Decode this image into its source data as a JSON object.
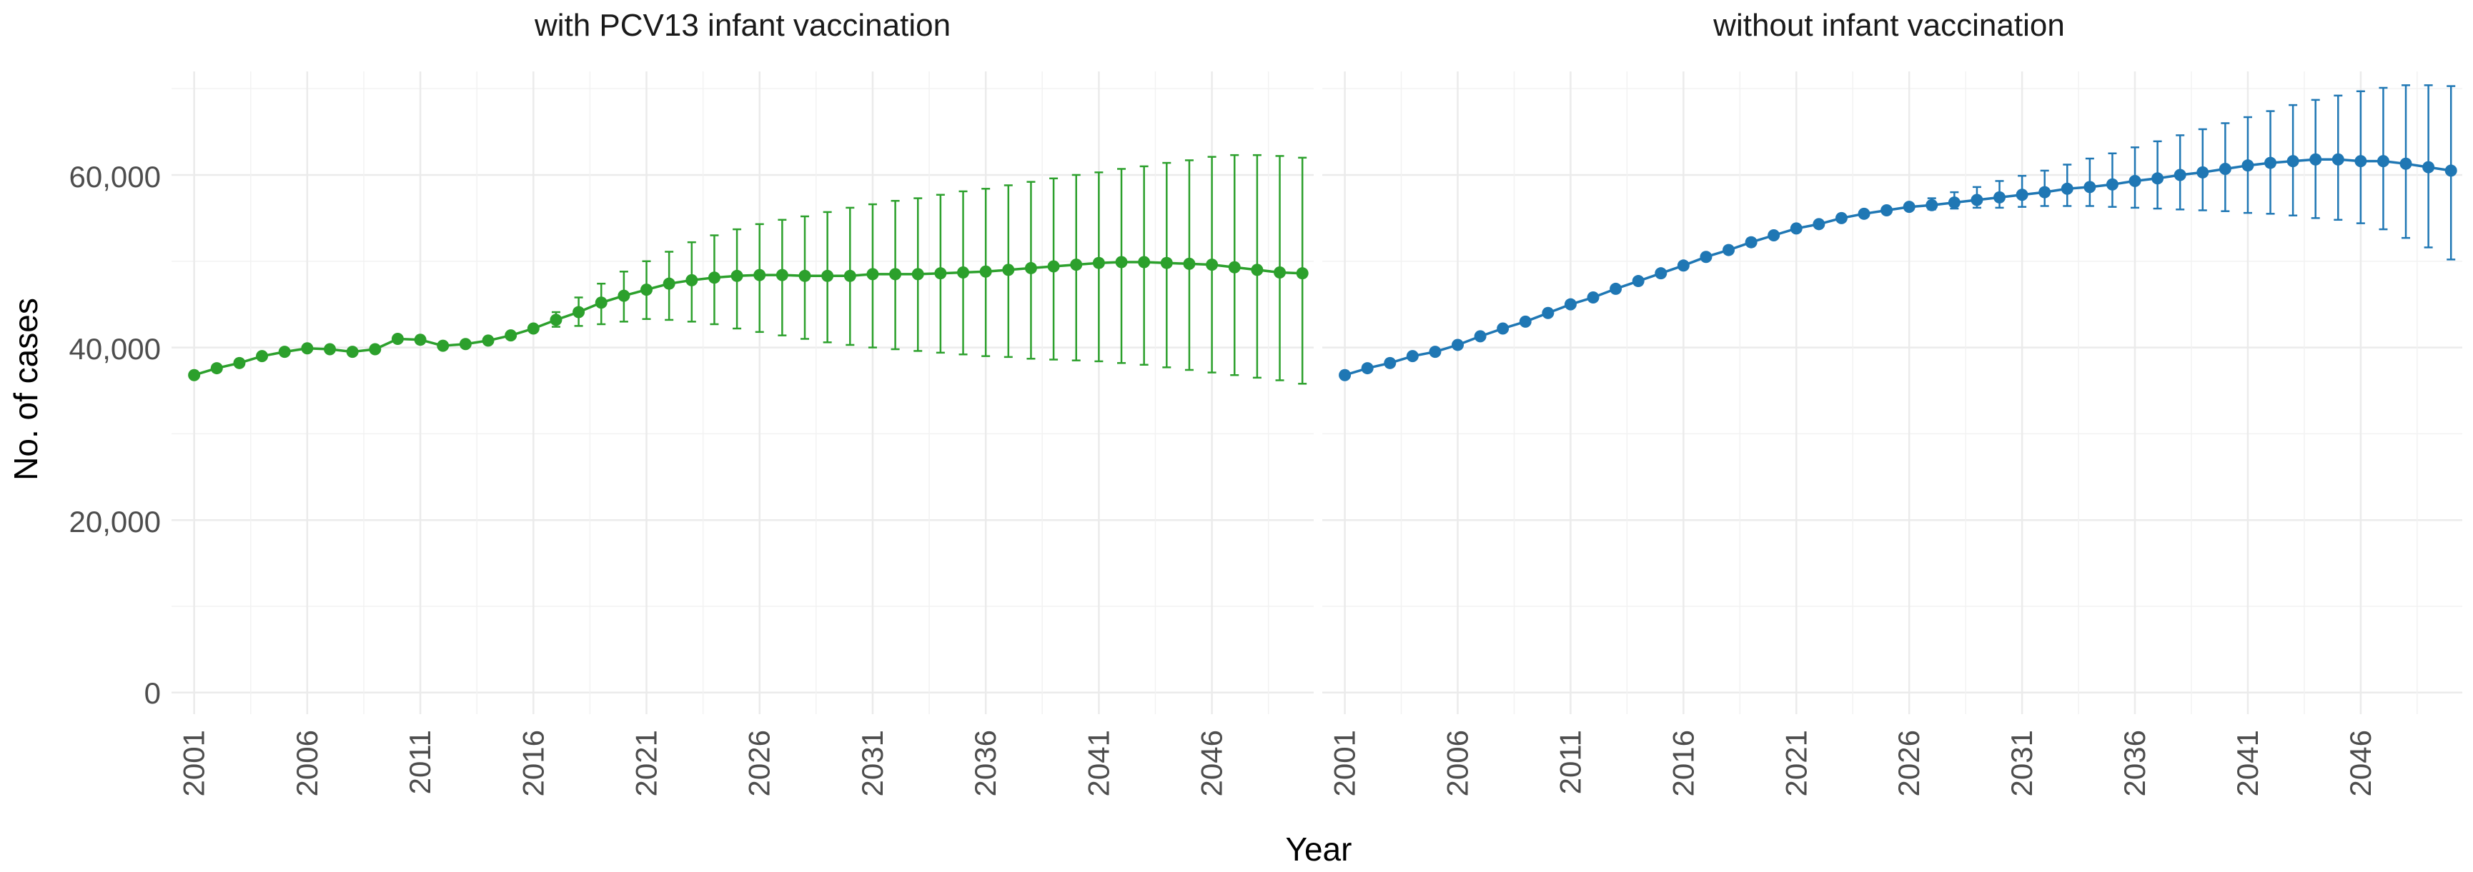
{
  "chart_data": {
    "type": "line",
    "ylabel": "No. of cases",
    "xlabel": "Year",
    "y_ticks": [
      0,
      20000,
      40000,
      60000
    ],
    "y_tick_labels": [
      "0",
      "20,000",
      "40,000",
      "60,000"
    ],
    "x_ticks": [
      2001,
      2006,
      2011,
      2016,
      2021,
      2026,
      2031,
      2036,
      2041,
      2046
    ],
    "x_tick_labels": [
      "2001",
      "2006",
      "2011",
      "2016",
      "2021",
      "2026",
      "2031",
      "2036",
      "2041",
      "2046"
    ],
    "ylim": [
      -2500,
      72000
    ],
    "xlim": [
      2000.0,
      2050.5
    ],
    "panels": [
      {
        "title": "with PCV13 infant vaccination",
        "color": "#2ca02c",
        "years": [
          2001,
          2002,
          2003,
          2004,
          2005,
          2006,
          2007,
          2008,
          2009,
          2010,
          2011,
          2012,
          2013,
          2014,
          2015,
          2016,
          2017,
          2018,
          2019,
          2020,
          2021,
          2022,
          2023,
          2024,
          2025,
          2026,
          2027,
          2028,
          2029,
          2030,
          2031,
          2032,
          2033,
          2034,
          2035,
          2036,
          2037,
          2038,
          2039,
          2040,
          2041,
          2042,
          2043,
          2044,
          2045,
          2046,
          2047,
          2048,
          2049,
          2050
        ],
        "values": [
          36800,
          37600,
          38200,
          39000,
          39500,
          39900,
          39800,
          39500,
          39800,
          41000,
          40900,
          40200,
          40400,
          40800,
          41400,
          42200,
          43200,
          44100,
          45200,
          46000,
          46700,
          47400,
          47800,
          48100,
          48300,
          48400,
          48400,
          48300,
          48300,
          48300,
          48500,
          48500,
          48500,
          48600,
          48700,
          48800,
          49000,
          49200,
          49400,
          49600,
          49800,
          49900,
          49900,
          49800,
          49700,
          49600,
          49300,
          49000,
          48700,
          48600
        ],
        "lower": [
          36800,
          37600,
          38200,
          39000,
          39500,
          39900,
          39800,
          39500,
          39800,
          41000,
          40900,
          40200,
          40400,
          40800,
          41400,
          42200,
          42400,
          42500,
          42700,
          43000,
          43300,
          43200,
          43000,
          42700,
          42200,
          41800,
          41400,
          41000,
          40600,
          40300,
          40000,
          39800,
          39600,
          39400,
          39200,
          39000,
          38900,
          38700,
          38600,
          38500,
          38400,
          38200,
          38000,
          37700,
          37400,
          37100,
          36800,
          36500,
          36200,
          35800
        ],
        "upper": [
          36800,
          37600,
          38200,
          39000,
          39500,
          39900,
          39800,
          39500,
          39800,
          41000,
          40900,
          40200,
          40400,
          40800,
          41400,
          42200,
          44100,
          45800,
          47400,
          48800,
          50000,
          51100,
          52200,
          53000,
          53700,
          54300,
          54800,
          55200,
          55700,
          56200,
          56600,
          57000,
          57300,
          57700,
          58100,
          58400,
          58800,
          59200,
          59600,
          60000,
          60300,
          60700,
          61000,
          61400,
          61700,
          62100,
          62300,
          62300,
          62200,
          62000
        ]
      },
      {
        "title": "without infant vaccination",
        "color": "#1f77b4",
        "years": [
          2001,
          2002,
          2003,
          2004,
          2005,
          2006,
          2007,
          2008,
          2009,
          2010,
          2011,
          2012,
          2013,
          2014,
          2015,
          2016,
          2017,
          2018,
          2019,
          2020,
          2021,
          2022,
          2023,
          2024,
          2025,
          2026,
          2027,
          2028,
          2029,
          2030,
          2031,
          2032,
          2033,
          2034,
          2035,
          2036,
          2037,
          2038,
          2039,
          2040,
          2041,
          2042,
          2043,
          2044,
          2045,
          2046,
          2047,
          2048,
          2049,
          2050
        ],
        "values": [
          36800,
          37600,
          38200,
          39000,
          39500,
          40300,
          41300,
          42200,
          43000,
          44000,
          45000,
          45800,
          46800,
          47700,
          48600,
          49500,
          50500,
          51300,
          52200,
          53000,
          53800,
          54300,
          55000,
          55500,
          55900,
          56300,
          56500,
          56800,
          57100,
          57400,
          57700,
          58000,
          58400,
          58600,
          58900,
          59300,
          59600,
          60000,
          60300,
          60700,
          61100,
          61400,
          61600,
          61800,
          61800,
          61600,
          61600,
          61300,
          60900,
          60500
        ],
        "lower": [
          36800,
          37600,
          38200,
          39000,
          39500,
          40300,
          41300,
          42200,
          43000,
          44000,
          45000,
          45800,
          46800,
          47700,
          48600,
          49500,
          50500,
          51300,
          52200,
          53000,
          53800,
          54300,
          55000,
          55500,
          55900,
          56000,
          56000,
          56100,
          56200,
          56200,
          56300,
          56400,
          56400,
          56400,
          56300,
          56200,
          56100,
          56000,
          55900,
          55800,
          55600,
          55500,
          55300,
          55000,
          54800,
          54400,
          53700,
          52700,
          51600,
          50200
        ],
        "upper": [
          36800,
          37600,
          38200,
          39000,
          39500,
          40300,
          41300,
          42200,
          43000,
          44000,
          45000,
          45800,
          46800,
          47700,
          48600,
          49500,
          50500,
          51300,
          52200,
          53000,
          53800,
          54300,
          55000,
          55500,
          55900,
          56600,
          57300,
          58000,
          58600,
          59300,
          59900,
          60500,
          61200,
          61900,
          62500,
          63200,
          63900,
          64600,
          65300,
          66000,
          66700,
          67400,
          68100,
          68700,
          69200,
          69700,
          70100,
          70400,
          70400,
          70300
        ]
      }
    ]
  }
}
